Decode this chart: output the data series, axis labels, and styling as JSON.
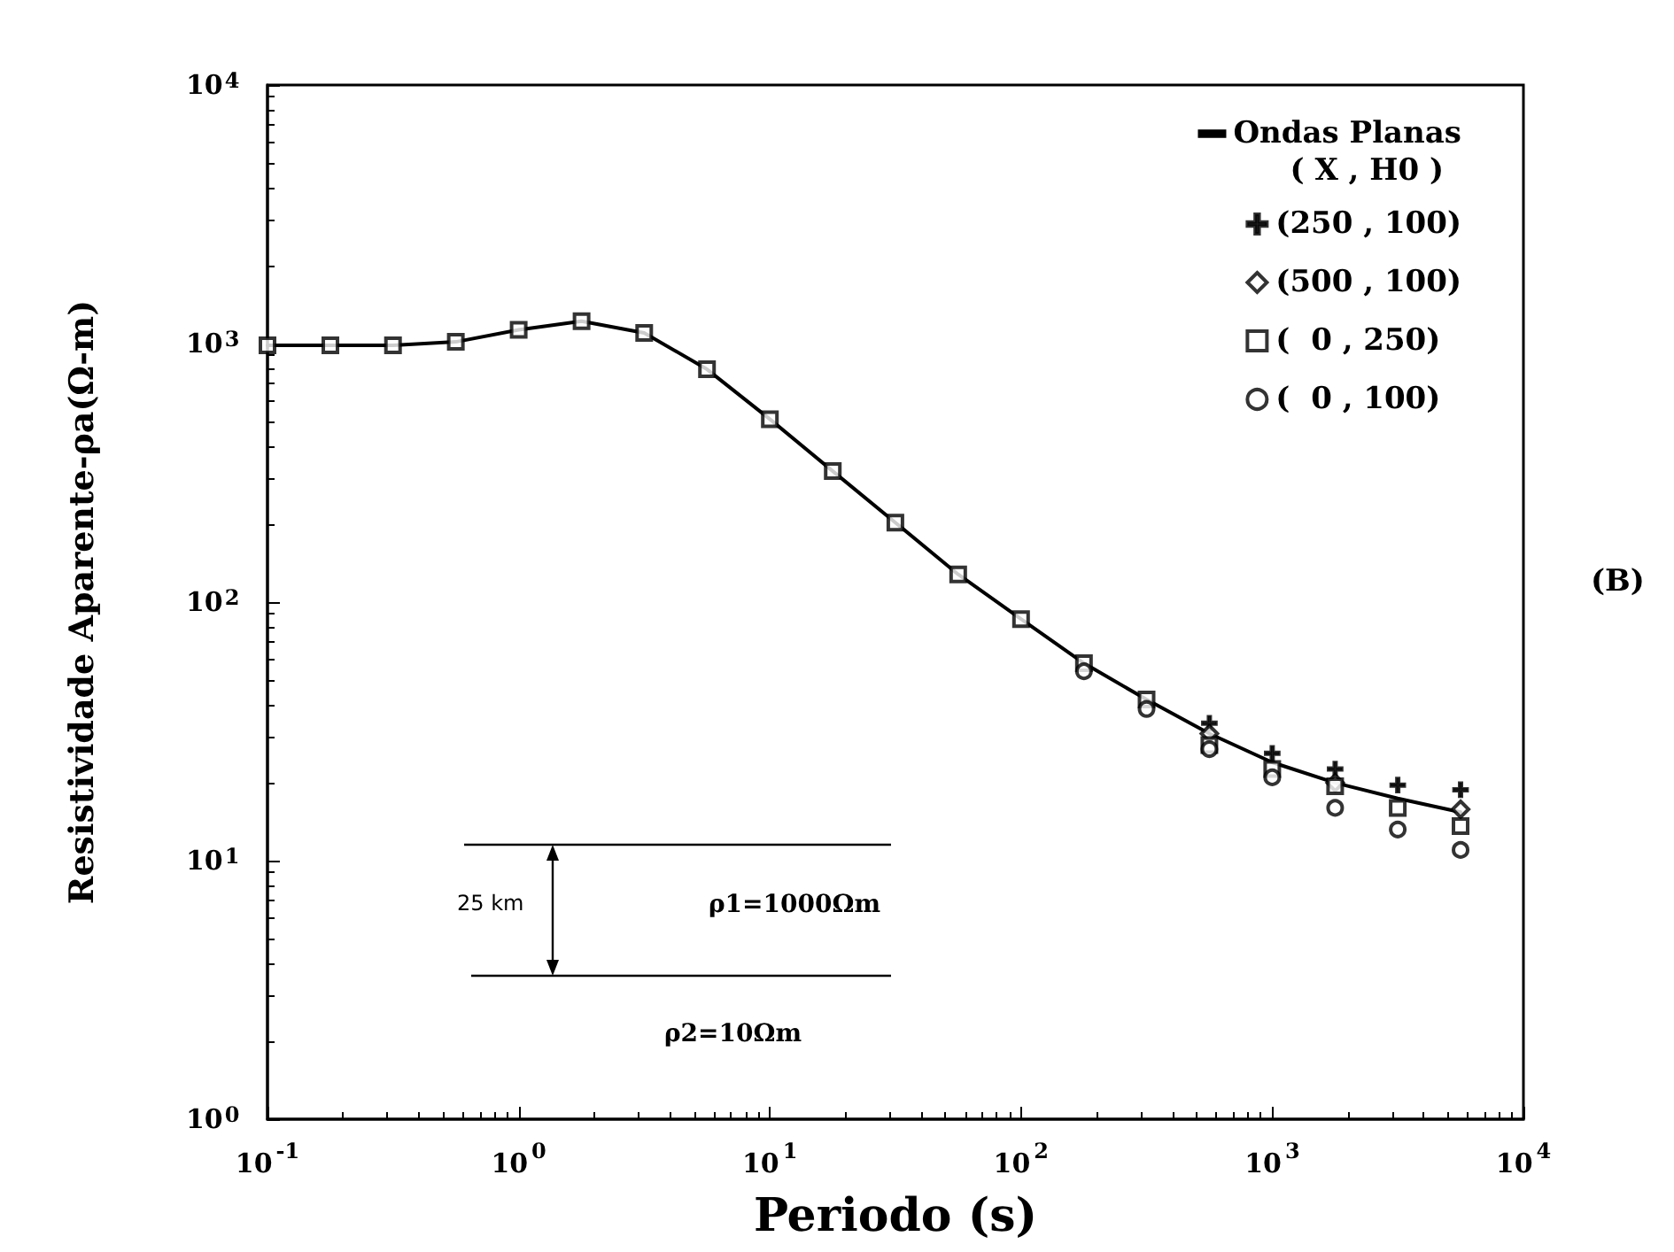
{
  "chart_data": {
    "type": "line",
    "xlabel": "Periodo (s)",
    "ylabel": "Resistividade Aparente-ρa(Ω-m)",
    "legend_title": "( X , H0 )",
    "legend": "top right",
    "log": "xy",
    "x": [
      0.1,
      0.178,
      0.316,
      0.562,
      1,
      1.78,
      3.16,
      5.62,
      10,
      17.8,
      31.6,
      56.2,
      100,
      178,
      316,
      562,
      1000,
      1780,
      3160,
      5620
    ],
    "xlim": [
      0.1,
      10000
    ],
    "ylim": [
      1,
      10000
    ],
    "xticks": [
      {
        "value": 0.1,
        "label": "10$^{-1}$"
      },
      {
        "value": 1,
        "label": "10$^{0}$"
      },
      {
        "value": 10,
        "label": "10$^{1}$"
      },
      {
        "value": 100,
        "label": "10$^{2}$"
      },
      {
        "value": 1000,
        "label": "10$^{3}$"
      },
      {
        "value": 10000,
        "label": "10$^{4}$"
      }
    ],
    "yticks": [
      {
        "value": 1,
        "label": "10$^{0}$"
      },
      {
        "value": 10,
        "label": "10$^{1}$"
      },
      {
        "value": 100,
        "label": "10$^{2}$"
      },
      {
        "value": 1000,
        "label": "10$^{3}$"
      },
      {
        "value": 10000,
        "label": "10$^{4}$"
      }
    ],
    "series": [
      {
        "name": "Ondas Planas",
        "color": "#000000",
        "marker": "none",
        "values": [
          985,
          985,
          985,
          1015,
          1130,
          1220,
          1100,
          795,
          510,
          321,
          203,
          128,
          86,
          58,
          42,
          31,
          24,
          20,
          17.4,
          15.4
        ]
      },
      {
        "name": "(250 , 100)",
        "type": "scatter",
        "color": "#000000",
        "marker": "cross",
        "values": [
          null,
          null,
          null,
          null,
          null,
          null,
          null,
          null,
          null,
          null,
          null,
          null,
          null,
          null,
          null,
          34,
          26,
          22.6,
          19.6,
          18.8
        ]
      },
      {
        "name": "(500 , 100)",
        "type": "scatter",
        "color": "#000000",
        "marker": "diamond",
        "values": [
          null,
          null,
          null,
          null,
          null,
          null,
          null,
          null,
          null,
          null,
          null,
          null,
          null,
          null,
          null,
          31,
          null,
          20,
          null,
          15.8
        ]
      },
      {
        "name": "(  0 , 250)",
        "type": "scatter",
        "color": "#000000",
        "marker": "square",
        "values": [
          985,
          985,
          985,
          1015,
          1130,
          1220,
          1100,
          795,
          510,
          321,
          203,
          128,
          86,
          58,
          42,
          28,
          22.6,
          19.4,
          16,
          13.6
        ]
      },
      {
        "name": "(  0 , 100)",
        "type": "scatter",
        "color": "#000000",
        "marker": "circle",
        "values": [
          null,
          null,
          null,
          null,
          null,
          null,
          null,
          null,
          null,
          null,
          null,
          null,
          null,
          54,
          38.6,
          27,
          21,
          16,
          13.2,
          11
        ]
      }
    ],
    "annotations": [
      "25 km",
      "ρ1=1000Ωm",
      "ρ2=10Ωm",
      "(B)"
    ]
  }
}
